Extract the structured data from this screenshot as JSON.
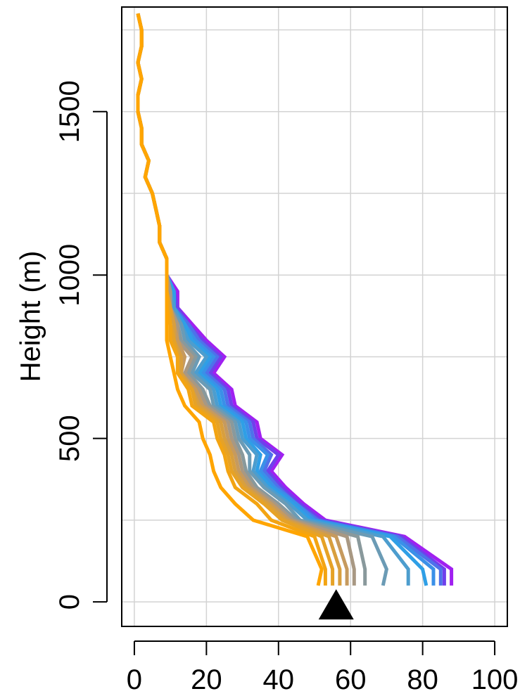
{
  "chart_data": {
    "type": "line",
    "title": "",
    "xlabel": "",
    "ylabel": "Height (m)",
    "xlim": [
      -3.5,
      103.5
    ],
    "ylim": [
      -75,
      1820
    ],
    "x_ticks": [
      0,
      20,
      40,
      60,
      80,
      100
    ],
    "x_tick_labels": [
      "0",
      "20",
      "40",
      "60",
      "80",
      "100"
    ],
    "y_ticks": [
      0,
      500,
      1000,
      1500
    ],
    "y_tick_labels": [
      "0",
      "500",
      "1000",
      "1500"
    ],
    "grid": {
      "horizontal_lines_at": [
        0,
        250,
        500,
        750,
        1000,
        1250,
        1500,
        1750
      ],
      "vertical_lines_at": [
        0,
        20,
        40,
        60,
        80,
        100
      ],
      "color": "#d3d3d3"
    },
    "legend": "none",
    "marker": {
      "shape": "triangle",
      "x": 56,
      "y": 0,
      "color": "#000000"
    },
    "color_gradient": {
      "from": "#a020f0",
      "mid": "#2f9fe6",
      "to": "#ffa500"
    },
    "profiles": {
      "heights": [
        50,
        100,
        200,
        250,
        300,
        350,
        400,
        450,
        500,
        550,
        600,
        650,
        700,
        750,
        800,
        850,
        900,
        950,
        1000,
        1050,
        1100,
        1150,
        1200,
        1250,
        1300,
        1350,
        1400,
        1450,
        1500,
        1550,
        1600,
        1650,
        1700,
        1750,
        1800
      ],
      "series": [
        {
          "values": [
            88,
            88,
            75,
            53,
            47,
            42,
            38,
            41,
            35,
            34,
            28,
            27,
            22,
            25,
            20,
            16,
            12,
            12,
            9,
            9,
            7,
            7,
            6,
            5,
            3,
            4,
            2,
            2,
            1,
            1,
            2,
            1,
            2,
            2,
            1
          ],
          "color": "#a020f0"
        },
        {
          "values": [
            86,
            86,
            74,
            52,
            46,
            41,
            37,
            40,
            34,
            33,
            27,
            26,
            21,
            24,
            19,
            15,
            12,
            11,
            9,
            9,
            7,
            7,
            6,
            5,
            3,
            4,
            2,
            2,
            1,
            1,
            2,
            1,
            2,
            2,
            1
          ],
          "color": "#6f40ec"
        },
        {
          "values": [
            85,
            85,
            73,
            51,
            45,
            40,
            36,
            38,
            33,
            32,
            26,
            25,
            20,
            23,
            18,
            15,
            11,
            11,
            9,
            9,
            7,
            7,
            6,
            5,
            3,
            4,
            2,
            2,
            1,
            1,
            2,
            1,
            2,
            2,
            1
          ],
          "color": "#4e72ea"
        },
        {
          "values": [
            83,
            83,
            72,
            50,
            45,
            39,
            35,
            37,
            32,
            31,
            25,
            24,
            19,
            22,
            17,
            14,
            11,
            11,
            9,
            9,
            7,
            7,
            6,
            5,
            3,
            4,
            2,
            2,
            1,
            1,
            2,
            1,
            2,
            2,
            1
          ],
          "color": "#3a90e8"
        },
        {
          "values": [
            81,
            80,
            71,
            49,
            44,
            38,
            34,
            35,
            31,
            30,
            24,
            23,
            18,
            21,
            16,
            14,
            11,
            11,
            9,
            9,
            7,
            7,
            6,
            5,
            3,
            4,
            2,
            2,
            1,
            1,
            2,
            1,
            2,
            2,
            1
          ],
          "color": "#2f9fe6"
        },
        {
          "values": [
            76,
            76,
            69,
            48,
            43,
            37,
            33,
            34,
            30,
            29,
            23,
            22,
            17,
            20,
            15,
            13,
            11,
            10,
            9,
            9,
            7,
            7,
            6,
            5,
            3,
            4,
            2,
            2,
            1,
            1,
            2,
            1,
            2,
            2,
            1
          ],
          "color": "#4d9dce"
        },
        {
          "values": [
            69,
            70,
            66,
            46,
            42,
            36,
            32,
            32,
            29,
            28,
            22,
            21,
            16,
            18,
            14,
            13,
            10,
            10,
            9,
            9,
            7,
            7,
            6,
            5,
            3,
            4,
            2,
            2,
            1,
            1,
            2,
            1,
            2,
            2,
            1
          ],
          "color": "#6b9bb5"
        },
        {
          "values": [
            64,
            64,
            62,
            45,
            40,
            34,
            31,
            30,
            28,
            27,
            21,
            19,
            15,
            17,
            13,
            12,
            10,
            10,
            9,
            9,
            7,
            7,
            6,
            5,
            3,
            4,
            2,
            2,
            1,
            1,
            2,
            1,
            2,
            2,
            1
          ],
          "color": "#89999c"
        },
        {
          "values": [
            61,
            61,
            59,
            44,
            39,
            33,
            30,
            29,
            27,
            26,
            20,
            18,
            14,
            16,
            12,
            12,
            10,
            10,
            9,
            9,
            7,
            7,
            6,
            5,
            3,
            4,
            2,
            2,
            1,
            1,
            2,
            1,
            2,
            2,
            1
          ],
          "color": "#a89883"
        },
        {
          "values": [
            59,
            59,
            56,
            43,
            38,
            32,
            29,
            28,
            26,
            25,
            19,
            17,
            13,
            14,
            12,
            11,
            10,
            9,
            9,
            9,
            7,
            7,
            6,
            5,
            3,
            4,
            2,
            2,
            1,
            1,
            2,
            1,
            2,
            2,
            1
          ],
          "color": "#c69a5e"
        },
        {
          "values": [
            57,
            57,
            54,
            42,
            37,
            31,
            28,
            27,
            25,
            24,
            18,
            16,
            13,
            13,
            11,
            11,
            10,
            9,
            9,
            9,
            7,
            7,
            6,
            5,
            3,
            4,
            2,
            2,
            1,
            1,
            2,
            1,
            2,
            2,
            1
          ],
          "color": "#d89f3e"
        },
        {
          "values": [
            55,
            55,
            52,
            41,
            36,
            30,
            27,
            26,
            24,
            23,
            17,
            16,
            12,
            12,
            11,
            10,
            10,
            9,
            9,
            9,
            7,
            7,
            6,
            5,
            3,
            4,
            2,
            2,
            1,
            1,
            2,
            1,
            2,
            2,
            1
          ],
          "color": "#e6a226"
        },
        {
          "values": [
            53,
            53,
            50,
            38,
            34,
            28,
            26,
            25,
            23,
            22,
            16,
            15,
            12,
            12,
            10,
            10,
            9,
            9,
            9,
            9,
            7,
            7,
            6,
            5,
            3,
            4,
            2,
            2,
            1,
            1,
            2,
            1,
            2,
            2,
            1
          ],
          "color": "#f3a412"
        },
        {
          "values": [
            51,
            52,
            48,
            33,
            28,
            24,
            22,
            21,
            19,
            18,
            14,
            12,
            11,
            10,
            9,
            9,
            9,
            9,
            9,
            9,
            7,
            7,
            6,
            5,
            3,
            4,
            2,
            2,
            1,
            1,
            2,
            1,
            2,
            2,
            1
          ],
          "color": "#ffa500"
        }
      ]
    }
  }
}
